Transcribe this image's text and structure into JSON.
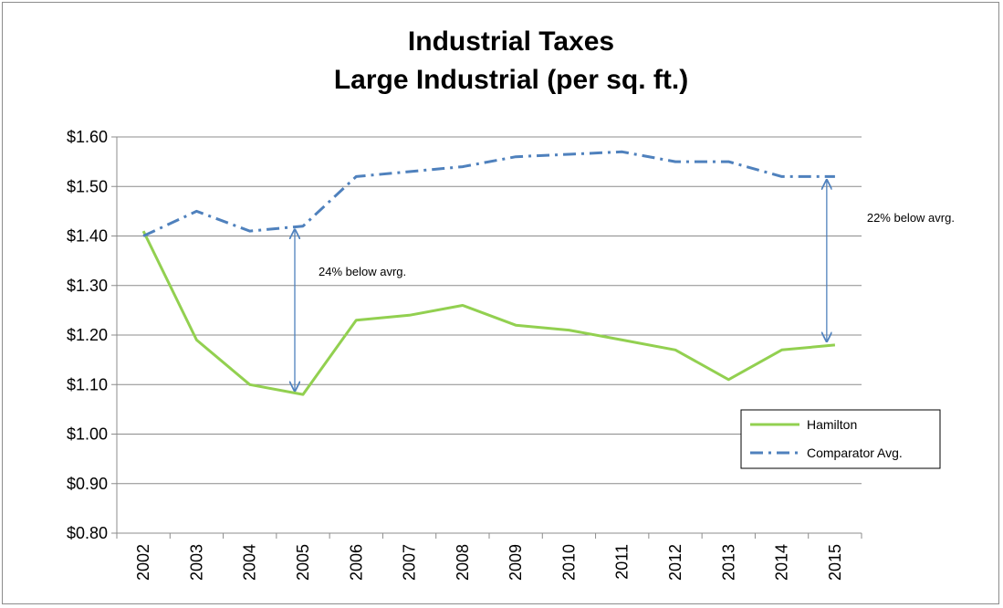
{
  "chart_data": {
    "type": "line",
    "title": "Industrial Taxes",
    "subtitle": "Large Industrial (per sq. ft.)",
    "xlabel": "",
    "ylabel": "",
    "categories": [
      "2002",
      "2003",
      "2004",
      "2005",
      "2006",
      "2007",
      "2008",
      "2009",
      "2010",
      "2011",
      "2012",
      "2013",
      "2014",
      "2015"
    ],
    "series": [
      {
        "name": "Hamilton",
        "color": "#92d050",
        "style": "solid",
        "values": [
          1.41,
          1.19,
          1.1,
          1.08,
          1.23,
          1.24,
          1.26,
          1.22,
          1.21,
          1.19,
          1.17,
          1.11,
          1.17,
          1.18
        ]
      },
      {
        "name": "Comparator Avg.",
        "color": "#4f81bd",
        "style": "dash-dot",
        "values": [
          1.4,
          1.45,
          1.41,
          1.42,
          1.52,
          1.53,
          1.54,
          1.56,
          1.565,
          1.57,
          1.55,
          1.55,
          1.52,
          1.52
        ]
      }
    ],
    "ylim": [
      0.8,
      1.6
    ],
    "yticks": [
      {
        "value": 1.6,
        "label": "$1.60"
      },
      {
        "value": 1.5,
        "label": "$1.50"
      },
      {
        "value": 1.4,
        "label": "$1.40"
      },
      {
        "value": 1.3,
        "label": "$1.30"
      },
      {
        "value": 1.2,
        "label": "$1.20"
      },
      {
        "value": 1.1,
        "label": "$1.10"
      },
      {
        "value": 1.0,
        "label": "$1.00"
      },
      {
        "value": 0.9,
        "label": "$0.90"
      },
      {
        "value": 0.8,
        "label": "$0.80"
      }
    ],
    "grid": true,
    "legend_position": "right",
    "annotations": [
      {
        "text": "24% below avrg.",
        "category": "2005",
        "from": 1.42,
        "to": 1.08
      },
      {
        "text": "22% below avrg.",
        "category": "2015",
        "from": 1.52,
        "to": 1.18
      }
    ],
    "arrow_color": "#4f81bd"
  }
}
